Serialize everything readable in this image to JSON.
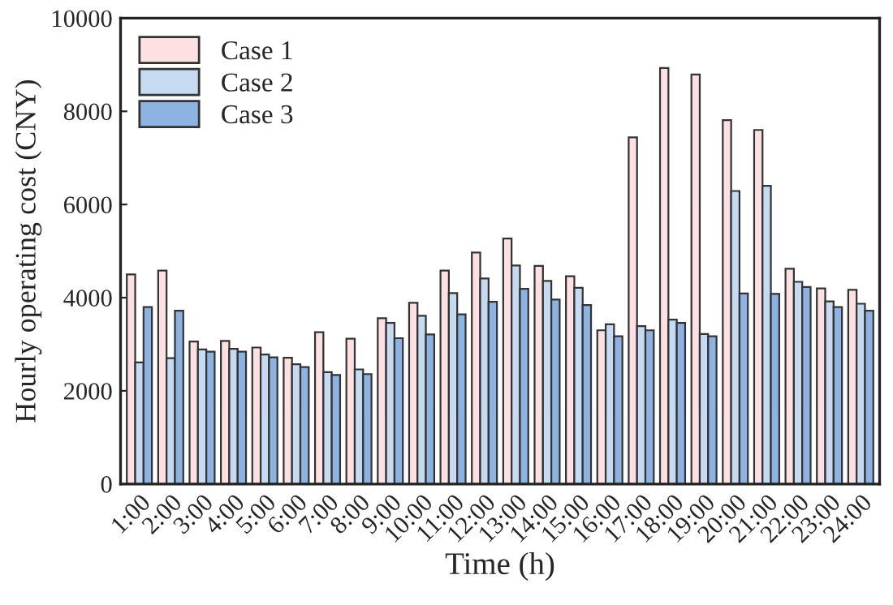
{
  "chart_data": {
    "type": "bar",
    "xlabel": "Time (h)",
    "ylabel": "Hourly operating cost (CNY)",
    "categories": [
      "1:00",
      "2:00",
      "3:00",
      "4:00",
      "5:00",
      "6:00",
      "7:00",
      "8:00",
      "9:00",
      "10:00",
      "11:00",
      "12:00",
      "13:00",
      "14:00",
      "15:00",
      "16:00",
      "17:00",
      "18:00",
      "19:00",
      "20:00",
      "21:00",
      "22:00",
      "23:00",
      "24:00"
    ],
    "series": [
      {
        "name": "Case 1",
        "color": "#fde0e2",
        "values": [
          4500,
          4580,
          3060,
          3070,
          2930,
          2710,
          3260,
          3120,
          3560,
          3890,
          4580,
          4970,
          5270,
          4680,
          4460,
          3300,
          7440,
          8930,
          8790,
          7810,
          7600,
          4620,
          4200,
          4170
        ]
      },
      {
        "name": "Case 2",
        "color": "#c6daf2",
        "values": [
          2610,
          2700,
          2890,
          2900,
          2780,
          2570,
          2400,
          2460,
          3460,
          3610,
          4100,
          4410,
          4690,
          4360,
          4210,
          3430,
          3390,
          3530,
          3220,
          6290,
          6400,
          4340,
          3920,
          3870
        ]
      },
      {
        "name": "Case 3",
        "color": "#8db3e2",
        "values": [
          3800,
          3720,
          2840,
          2840,
          2720,
          2510,
          2340,
          2360,
          3130,
          3210,
          3640,
          3910,
          4190,
          3960,
          3840,
          3170,
          3300,
          3460,
          3170,
          4090,
          4080,
          4230,
          3800,
          3720
        ]
      }
    ],
    "ylim": [
      0,
      10000
    ],
    "yticks": [
      0,
      2000,
      4000,
      6000,
      8000,
      10000
    ],
    "grid": false,
    "legend": "top left"
  }
}
